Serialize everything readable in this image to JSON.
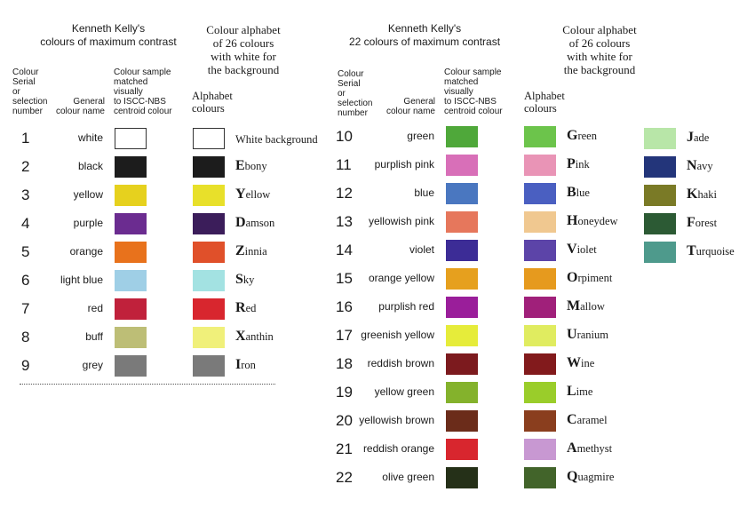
{
  "left": {
    "title_lines": [
      "Kenneth Kelly's",
      "colours of maximum contrast"
    ],
    "alphabet_title_lines": [
      "Colour alphabet",
      "of 26 colours",
      "with white for",
      "the background"
    ],
    "hdr_serial": [
      "Colour",
      "Serial",
      "or",
      "selection",
      "number"
    ],
    "hdr_general": [
      "General",
      "colour name"
    ],
    "hdr_sample": [
      "Colour sample",
      "matched",
      "visually",
      "to ISCC-NBS",
      "centroid colour"
    ],
    "hdr_alphabet": [
      "Alphabet",
      "colours"
    ],
    "rows": [
      {
        "num": "1",
        "name": "white",
        "color": "#ffffff",
        "alpha_color": "#ffffff",
        "alpha_first": "",
        "alpha_rest": "White background"
      },
      {
        "num": "2",
        "name": "black",
        "color": "#1c1c1c",
        "alpha_color": "#1c1c1c",
        "alpha_first": "E",
        "alpha_rest": "bony"
      },
      {
        "num": "3",
        "name": "yellow",
        "color": "#e6d11e",
        "alpha_color": "#e8e02a",
        "alpha_first": "Y",
        "alpha_rest": "ellow"
      },
      {
        "num": "4",
        "name": "purple",
        "color": "#6b2c90",
        "alpha_color": "#3b1d5a",
        "alpha_first": "D",
        "alpha_rest": "amson"
      },
      {
        "num": "5",
        "name": "orange",
        "color": "#e8721c",
        "alpha_color": "#e0502a",
        "alpha_first": "Z",
        "alpha_rest": "innia"
      },
      {
        "num": "6",
        "name": "light blue",
        "color": "#9fcfe6",
        "alpha_color": "#a3e2e2",
        "alpha_first": "S",
        "alpha_rest": "ky"
      },
      {
        "num": "7",
        "name": "red",
        "color": "#c0213b",
        "alpha_color": "#d8262e",
        "alpha_first": "R",
        "alpha_rest": "ed"
      },
      {
        "num": "8",
        "name": "buff",
        "color": "#bdbe76",
        "alpha_color": "#f0f07a",
        "alpha_first": "X",
        "alpha_rest": "anthin"
      },
      {
        "num": "9",
        "name": "grey",
        "color": "#7a7a7a",
        "alpha_color": "#7a7a7a",
        "alpha_first": "I",
        "alpha_rest": "ron"
      }
    ]
  },
  "right": {
    "title_lines": [
      "Kenneth Kelly's",
      "22 colours of maximum contrast"
    ],
    "alphabet_title_lines": [
      "Colour alphabet",
      "of 26 colours",
      "with white for",
      "the background"
    ],
    "hdr_serial": [
      "Colour",
      "Serial",
      "or",
      "selection",
      "number"
    ],
    "hdr_general": [
      "General",
      "colour name"
    ],
    "hdr_sample": [
      "Colour sample",
      "matched",
      "visually",
      "to ISCC-NBS",
      "centroid colour"
    ],
    "hdr_alphabet": [
      "Alphabet",
      "colours"
    ],
    "rows": [
      {
        "num": "10",
        "name": "green",
        "color": "#4fa83a",
        "alpha_color": "#6cc44b",
        "alpha_first": "G",
        "alpha_rest": "reen"
      },
      {
        "num": "11",
        "name": "purplish pink",
        "color": "#d86fb8",
        "alpha_color": "#e994b6",
        "alpha_first": "P",
        "alpha_rest": "ink"
      },
      {
        "num": "12",
        "name": "blue",
        "color": "#4a77c0",
        "alpha_color": "#4a5fc1",
        "alpha_first": "B",
        "alpha_rest": "lue"
      },
      {
        "num": "13",
        "name": "yellowish pink",
        "color": "#e6775c",
        "alpha_color": "#f0c890",
        "alpha_first": "H",
        "alpha_rest": "oneydew"
      },
      {
        "num": "14",
        "name": "violet",
        "color": "#3c2c96",
        "alpha_color": "#5c44a8",
        "alpha_first": "V",
        "alpha_rest": "iolet"
      },
      {
        "num": "15",
        "name": "orange yellow",
        "color": "#e6a01e",
        "alpha_color": "#e69a1e",
        "alpha_first": "O",
        "alpha_rest": "rpiment"
      },
      {
        "num": "16",
        "name": "purplish red",
        "color": "#9a1e9a",
        "alpha_color": "#a0207a",
        "alpha_first": "M",
        "alpha_rest": "allow"
      },
      {
        "num": "17",
        "name": "greenish yellow",
        "color": "#e6ec3a",
        "alpha_color": "#e0ec60",
        "alpha_first": "U",
        "alpha_rest": "ranium"
      },
      {
        "num": "18",
        "name": "reddish brown",
        "color": "#7c1a1e",
        "alpha_color": "#821a1c",
        "alpha_first": "W",
        "alpha_rest": "ine"
      },
      {
        "num": "19",
        "name": "yellow green",
        "color": "#84b22c",
        "alpha_color": "#9acd2a",
        "alpha_first": "L",
        "alpha_rest": "ime"
      },
      {
        "num": "20",
        "name": "yellowish brown",
        "color": "#6b2c1a",
        "alpha_color": "#8a3e1e",
        "alpha_first": "C",
        "alpha_rest": "aramel"
      },
      {
        "num": "21",
        "name": "reddish orange",
        "color": "#d8262e",
        "alpha_color": "#c898d2",
        "alpha_first": "A",
        "alpha_rest": "methyst"
      },
      {
        "num": "22",
        "name": "olive green",
        "color": "#253018",
        "alpha_color": "#42642a",
        "alpha_first": "Q",
        "alpha_rest": "uagmire"
      }
    ],
    "extra": [
      {
        "alpha_color": "#b8e6a8",
        "alpha_first": "J",
        "alpha_rest": "ade"
      },
      {
        "alpha_color": "#23357a",
        "alpha_first": "N",
        "alpha_rest": "avy"
      },
      {
        "alpha_color": "#7a7a26",
        "alpha_first": "K",
        "alpha_rest": "haki"
      },
      {
        "alpha_color": "#2c5a34",
        "alpha_first": "F",
        "alpha_rest": "orest"
      },
      {
        "alpha_color": "#4e9a8c",
        "alpha_first": "T",
        "alpha_rest": "urquoise"
      }
    ]
  }
}
